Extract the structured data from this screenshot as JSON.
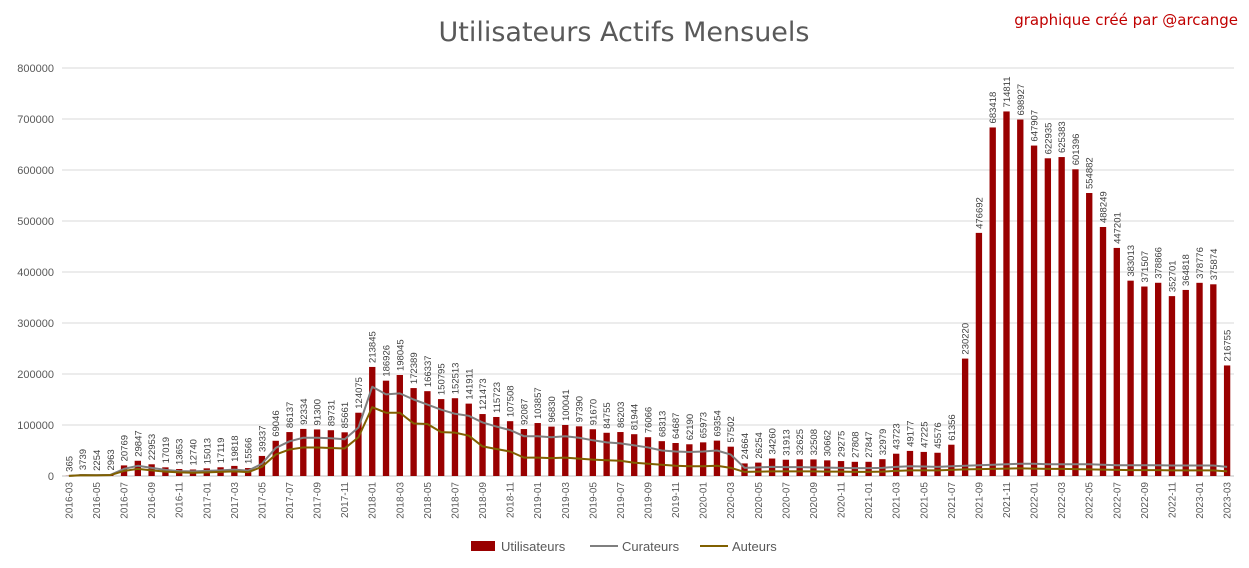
{
  "chart_data": {
    "type": "bar",
    "title": "Utilisateurs Actifs Mensuels",
    "annotation": "graphique créé par  @arcange",
    "ylim": [
      0,
      800000
    ],
    "yticks": [
      0,
      100000,
      200000,
      300000,
      400000,
      500000,
      600000,
      700000,
      800000
    ],
    "grid": true,
    "legend_position": "bottom",
    "categories": [
      "2016-03",
      "2016-04",
      "2016-05",
      "2016-06",
      "2016-07",
      "2016-08",
      "2016-09",
      "2016-10",
      "2016-11",
      "2016-12",
      "2017-01",
      "2017-02",
      "2017-03",
      "2017-04",
      "2017-05",
      "2017-06",
      "2017-07",
      "2017-08",
      "2017-09",
      "2017-10",
      "2017-11",
      "2017-12",
      "2018-01",
      "2018-02",
      "2018-03",
      "2018-04",
      "2018-05",
      "2018-06",
      "2018-07",
      "2018-08",
      "2018-09",
      "2018-10",
      "2018-11",
      "2018-12",
      "2019-01",
      "2019-02",
      "2019-03",
      "2019-04",
      "2019-05",
      "2019-06",
      "2019-07",
      "2019-08",
      "2019-09",
      "2019-10",
      "2019-11",
      "2019-12",
      "2020-01",
      "2020-02",
      "2020-03",
      "2020-04",
      "2020-05",
      "2020-06",
      "2020-07",
      "2020-08",
      "2020-09",
      "2020-10",
      "2020-11",
      "2020-12",
      "2021-01",
      "2021-02",
      "2021-03",
      "2021-04",
      "2021-05",
      "2021-06",
      "2021-07",
      "2021-08",
      "2021-09",
      "2021-10",
      "2021-11",
      "2021-12",
      "2022-01",
      "2022-02",
      "2022-03",
      "2022-04",
      "2022-05",
      "2022-06",
      "2022-07",
      "2022-08",
      "2022-09",
      "2022-10",
      "2022-11",
      "2022-12",
      "2023-01",
      "2023-02",
      "2023-03"
    ],
    "x_tick_labels": [
      "2016-03",
      "2016-05",
      "2016-07",
      "2016-09",
      "2016-11",
      "2017-01",
      "2017-03",
      "2017-05",
      "2017-07",
      "2017-09",
      "2017-11",
      "2018-01",
      "2018-03",
      "2018-05",
      "2018-07",
      "2018-09",
      "2018-11",
      "2019-01",
      "2019-03",
      "2019-05",
      "2019-07",
      "2019-09",
      "2019-11",
      "2020-01",
      "2020-03",
      "2020-05",
      "2020-07",
      "2020-09",
      "2020-11",
      "2021-01",
      "2021-03",
      "2021-05",
      "2021-07",
      "2021-09",
      "2021-11",
      "2022-01",
      "2022-03",
      "2022-05",
      "2022-07",
      "2022-09",
      "2022-11",
      "2023-01",
      "2023-03"
    ],
    "series": [
      {
        "name": "Utilisateurs",
        "type": "bar",
        "color": "#990000",
        "values": [
          365,
          3739,
          2254,
          2963,
          20769,
          29847,
          22953,
          17019,
          13653,
          12740,
          15013,
          17119,
          19818,
          15566,
          39337,
          69046,
          86137,
          92334,
          91300,
          89731,
          85661,
          124075,
          213845,
          186926,
          198045,
          172389,
          166337,
          150795,
          152513,
          141911,
          121473,
          115723,
          107508,
          92087,
          103857,
          96830,
          100041,
          97390,
          91670,
          84755,
          86203,
          81944,
          76066,
          68313,
          64687,
          62190,
          65973,
          69354,
          57502,
          24664,
          26254,
          34260,
          31913,
          32625,
          32508,
          30662,
          29275,
          27808,
          27847,
          32979,
          43723,
          49177,
          47225,
          45576,
          61356,
          230220,
          476692,
          683418,
          714811,
          698927,
          647907,
          622935,
          625383,
          601396,
          554882,
          488249,
          447201,
          383013,
          371507,
          378866,
          352701,
          364818,
          378776,
          375874,
          216755
        ],
        "labels": [
          "365",
          "3739",
          "2254",
          "2963",
          "20769",
          "29847",
          "22953",
          "17019",
          "13653",
          "12740",
          "15013",
          "17119",
          "19818",
          "15566",
          "39337",
          "69046",
          "86137",
          "92334",
          "91300",
          "89731",
          "85661",
          "124075",
          "213845",
          "186926",
          "198045",
          "172389",
          "166337",
          "150795",
          "152513",
          "141911",
          "121473",
          "115723",
          "107508",
          "92087",
          "103857",
          "96830",
          "100041",
          "97390",
          "91670",
          "84755",
          "86203",
          "81944",
          "76066",
          "68313",
          "64687",
          "62190",
          "65973",
          "69354",
          "57502",
          "24664",
          "26254",
          "34260",
          "31913",
          "32625",
          "32508",
          "30662",
          "29275",
          "27808",
          "27847",
          "32979",
          "43723",
          "49177",
          "47225",
          "45576",
          "61356",
          "230220",
          "476692",
          "683418",
          "714811",
          "698927",
          "647907",
          "622935",
          "625383",
          "601396",
          "554882",
          "488249",
          "447201",
          "383013",
          "371507",
          "378866",
          "352701",
          "364818",
          "378776",
          "375874",
          "216755"
        ]
      },
      {
        "name": "Curateurs",
        "type": "line",
        "color": "#7f7f7f",
        "values": [
          300,
          2000,
          1800,
          2200,
          14000,
          20000,
          16000,
          12000,
          9500,
          9000,
          10000,
          11000,
          12500,
          10500,
          24000,
          55000,
          68000,
          75000,
          75000,
          74000,
          72000,
          95000,
          175000,
          160000,
          162000,
          150000,
          140000,
          130000,
          122000,
          118000,
          105000,
          97000,
          90000,
          78000,
          78000,
          76000,
          78000,
          75000,
          70000,
          66000,
          64000,
          60000,
          56000,
          50000,
          48000,
          47000,
          48000,
          50000,
          42000,
          16000,
          17000,
          18000,
          17500,
          17500,
          17000,
          16500,
          16000,
          15500,
          15500,
          16000,
          18000,
          19000,
          18500,
          18000,
          19000,
          20000,
          21000,
          22000,
          23000,
          24000,
          24000,
          23000,
          23000,
          23000,
          23000,
          22000,
          21000,
          21000,
          21000,
          21000,
          20500,
          20500,
          20500,
          20500,
          18000
        ]
      },
      {
        "name": "Auteurs",
        "type": "line",
        "color": "#806000",
        "values": [
          200,
          1500,
          1200,
          1600,
          10000,
          14000,
          11000,
          8500,
          7000,
          6500,
          7000,
          8000,
          9000,
          7500,
          18000,
          42000,
          52000,
          56000,
          56000,
          55000,
          54000,
          76000,
          135000,
          124000,
          124000,
          103000,
          102000,
          86000,
          85000,
          79000,
          58000,
          53000,
          48000,
          36000,
          36000,
          35000,
          36000,
          34000,
          32000,
          31000,
          30000,
          26000,
          24000,
          22000,
          20000,
          19000,
          19000,
          20000,
          16000,
          8000,
          8500,
          9000,
          9000,
          9000,
          9000,
          8500,
          8500,
          8000,
          8000,
          8500,
          10000,
          11000,
          11000,
          11000,
          12000,
          13000,
          13500,
          14000,
          14500,
          15000,
          14500,
          14000,
          14000,
          13500,
          13000,
          12500,
          12000,
          11500,
          11500,
          11500,
          11000,
          11000,
          11000,
          11000,
          9000
        ]
      }
    ]
  }
}
